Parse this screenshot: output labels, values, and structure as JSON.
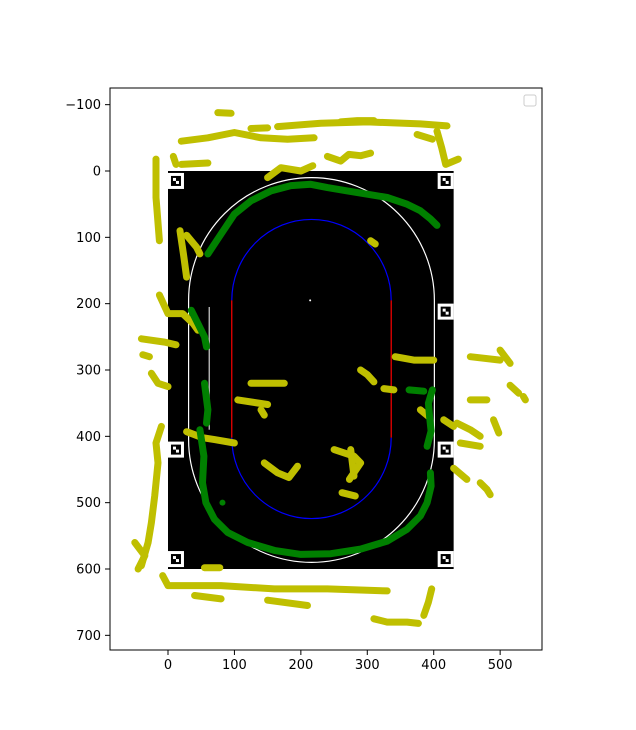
{
  "chart_data": {
    "type": "scatter",
    "title": "",
    "xlabel": "",
    "ylabel": "",
    "xlim": [
      -87,
      567
    ],
    "ylim": [
      720,
      -127
    ],
    "y_inverted": true,
    "grid": false,
    "legend": {
      "placement": "top-right",
      "entries": []
    },
    "x_ticks": [
      "0",
      "100",
      "200",
      "300",
      "400",
      "500"
    ],
    "y_ticks": [
      "−100",
      "0",
      "100",
      "200",
      "300",
      "400",
      "500",
      "600",
      "700"
    ],
    "image_extent": {
      "x": [
        0,
        430
      ],
      "y": [
        0,
        600
      ]
    },
    "colors": {
      "background_image": "#000000",
      "outer_boundary": "#ffffff",
      "inner_curves": "#0000ff",
      "inner_straights": "#ff0000",
      "series_yellow": "#bfbf00",
      "series_green": "#008000"
    },
    "marker_tags": [
      {
        "x": 12,
        "y": 15
      },
      {
        "x": 418,
        "y": 15
      },
      {
        "x": 12,
        "y": 420
      },
      {
        "x": 418,
        "y": 420
      },
      {
        "x": 418,
        "y": 212
      },
      {
        "x": 12,
        "y": 585
      },
      {
        "x": 418,
        "y": 585
      }
    ],
    "series": [
      {
        "color": "#bfbf00",
        "segments": [
          [
            [
              20,
              -45
            ],
            [
              60,
              -50
            ],
            [
              100,
              -58
            ],
            [
              140,
              -50
            ],
            [
              180,
              -48
            ],
            [
              220,
              -50
            ]
          ],
          [
            [
              75,
              -88
            ],
            [
              95,
              -87
            ]
          ],
          [
            [
              20,
              -10
            ],
            [
              60,
              -12
            ]
          ],
          [
            [
              165,
              -67
            ],
            [
              230,
              -72
            ],
            [
              300,
              -74
            ],
            [
              380,
              -71
            ],
            [
              420,
              -68
            ]
          ],
          [
            [
              125,
              -64
            ],
            [
              150,
              -65
            ]
          ],
          [
            [
              260,
              -74
            ],
            [
              285,
              -76
            ],
            [
              310,
              -76
            ]
          ],
          [
            [
              150,
              10
            ],
            [
              170,
              -5
            ],
            [
              200,
              0
            ],
            [
              218,
              -8
            ]
          ],
          [
            [
              240,
              -22
            ],
            [
              260,
              -15
            ],
            [
              272,
              -25
            ],
            [
              290,
              -23
            ],
            [
              305,
              -27
            ]
          ],
          [
            [
              375,
              -55
            ],
            [
              398,
              -48
            ]
          ],
          [
            [
              405,
              -60
            ],
            [
              412,
              -35
            ],
            [
              418,
              -10
            ],
            [
              437,
              -18
            ]
          ],
          [
            [
              -18,
              -18
            ],
            [
              -18,
              40
            ],
            [
              -13,
              105
            ]
          ],
          [
            [
              8,
              -22
            ],
            [
              12,
              -10
            ]
          ],
          [
            [
              18,
              90
            ],
            [
              24,
              130
            ],
            [
              28,
              160
            ]
          ],
          [
            [
              28,
              97
            ],
            [
              43,
              115
            ],
            [
              48,
              125
            ]
          ],
          [
            [
              -13,
              187
            ],
            [
              0,
              215
            ],
            [
              22,
              215
            ],
            [
              38,
              230
            ],
            [
              45,
              240
            ]
          ],
          [
            [
              -40,
              253
            ],
            [
              -5,
              258
            ],
            [
              12,
              262
            ]
          ],
          [
            [
              -38,
              277
            ],
            [
              -28,
              280
            ]
          ],
          [
            [
              -25,
              305
            ],
            [
              -15,
              320
            ],
            [
              0,
              325
            ]
          ],
          [
            [
              -10,
              385
            ],
            [
              -18,
              410
            ],
            [
              -15,
              440
            ],
            [
              -20,
              490
            ],
            [
              -25,
              530
            ],
            [
              -30,
              560
            ],
            [
              -40,
              595
            ]
          ],
          [
            [
              -45,
              600
            ],
            [
              -35,
              580
            ],
            [
              -50,
              560
            ]
          ],
          [
            [
              -8,
              610
            ],
            [
              0,
              625
            ],
            [
              80,
              625
            ],
            [
              160,
              630
            ],
            [
              240,
              630
            ],
            [
              330,
              633
            ]
          ],
          [
            [
              40,
              640
            ],
            [
              80,
              645
            ]
          ],
          [
            [
              150,
              647
            ],
            [
              210,
              655
            ]
          ],
          [
            [
              310,
              675
            ],
            [
              330,
              680
            ],
            [
              360,
              680
            ],
            [
              377,
              682
            ]
          ],
          [
            [
              385,
              670
            ],
            [
              392,
              650
            ],
            [
              397,
              630
            ]
          ],
          [
            [
              55,
              598
            ],
            [
              78,
              598
            ]
          ],
          [
            [
              28,
              393
            ],
            [
              52,
              402
            ],
            [
              70,
              405
            ],
            [
              100,
              410
            ]
          ],
          [
            [
              125,
              320
            ],
            [
              175,
              320
            ]
          ],
          [
            [
              105,
              345
            ],
            [
              150,
              352
            ]
          ],
          [
            [
              140,
              360
            ],
            [
              145,
              368
            ]
          ],
          [
            [
              145,
              440
            ],
            [
              165,
              455
            ],
            [
              182,
              462
            ],
            [
              195,
              445
            ]
          ],
          [
            [
              250,
              420
            ],
            [
              280,
              430
            ],
            [
              290,
              440
            ],
            [
              273,
              465
            ]
          ],
          [
            [
              275,
              420
            ],
            [
              280,
              460
            ]
          ],
          [
            [
              262,
              485
            ],
            [
              282,
              490
            ]
          ],
          [
            [
              290,
              300
            ],
            [
              300,
              307
            ],
            [
              310,
              318
            ]
          ],
          [
            [
              325,
              328
            ],
            [
              340,
              330
            ]
          ],
          [
            [
              305,
              105
            ],
            [
              312,
              110
            ]
          ],
          [
            [
              342,
              280
            ],
            [
              370,
              285
            ],
            [
              400,
              285
            ]
          ],
          [
            [
              380,
              360
            ],
            [
              392,
              370
            ]
          ],
          [
            [
              455,
              280
            ],
            [
              500,
              285
            ]
          ],
          [
            [
              455,
              345
            ],
            [
              480,
              345
            ]
          ],
          [
            [
              490,
              375
            ],
            [
              498,
              395
            ]
          ],
          [
            [
              415,
              375
            ],
            [
              430,
              385
            ]
          ],
          [
            [
              435,
              380
            ],
            [
              455,
              390
            ],
            [
              470,
              400
            ]
          ],
          [
            [
              440,
              410
            ],
            [
              470,
              415
            ]
          ],
          [
            [
              430,
              448
            ],
            [
              450,
              465
            ]
          ],
          [
            [
              470,
              470
            ],
            [
              480,
              480
            ],
            [
              485,
              488
            ]
          ],
          [
            [
              500,
              270
            ],
            [
              515,
              290
            ]
          ],
          [
            [
              515,
              323
            ],
            [
              528,
              335
            ]
          ],
          [
            [
              535,
              340
            ],
            [
              538,
              345
            ]
          ]
        ]
      },
      {
        "color": "#008000",
        "segments": [
          [
            [
              60,
              125
            ],
            [
              80,
              95
            ],
            [
              100,
              65
            ],
            [
              125,
              45
            ],
            [
              155,
              30
            ],
            [
              185,
              22
            ],
            [
              215,
              20
            ],
            [
              240,
              25
            ],
            [
              270,
              30
            ],
            [
              300,
              35
            ],
            [
              330,
              40
            ],
            [
              360,
              50
            ],
            [
              380,
              60
            ],
            [
              395,
              72
            ],
            [
              405,
              82
            ]
          ],
          [
            [
              35,
              210
            ],
            [
              45,
              230
            ],
            [
              55,
              250
            ],
            [
              58,
              265
            ]
          ],
          [
            [
              55,
              320
            ],
            [
              60,
              360
            ],
            [
              58,
              380
            ]
          ],
          [
            [
              48,
              390
            ],
            [
              54,
              430
            ],
            [
              52,
              470
            ],
            [
              57,
              500
            ],
            [
              70,
              525
            ],
            [
              90,
              545
            ],
            [
              120,
              560
            ],
            [
              160,
              572
            ],
            [
              200,
              578
            ],
            [
              245,
              577
            ],
            [
              290,
              570
            ],
            [
              330,
              558
            ],
            [
              360,
              540
            ],
            [
              380,
              520
            ],
            [
              390,
              500
            ],
            [
              396,
              475
            ],
            [
              395,
              455
            ]
          ],
          [
            [
              363,
              330
            ],
            [
              385,
              332
            ]
          ],
          [
            [
              398,
              330
            ],
            [
              392,
              350
            ],
            [
              394,
              372
            ],
            [
              396,
              392
            ],
            [
              390,
              415
            ]
          ],
          [
            [
              82,
              500
            ]
          ]
        ]
      }
    ]
  }
}
